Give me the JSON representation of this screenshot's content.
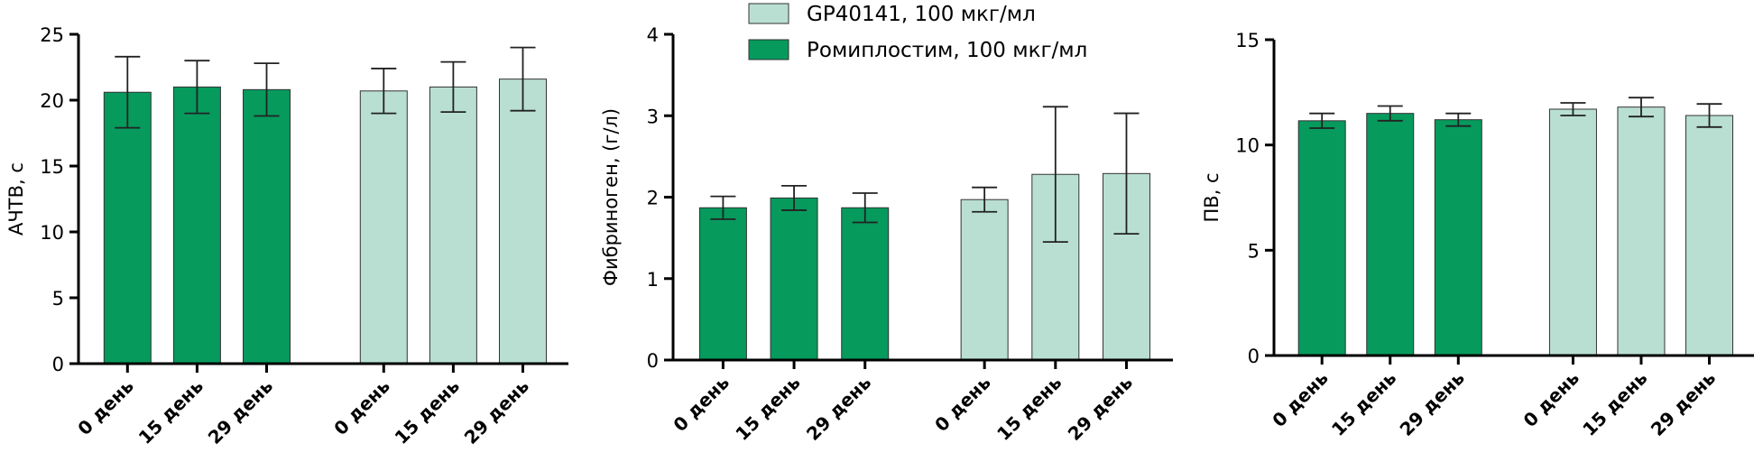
{
  "chart_data": [
    {
      "type": "bar",
      "y_label": "АЧТВ, с",
      "categories": [
        "0 день",
        "15 день",
        "29 день",
        "0 день",
        "15 день",
        "29 день"
      ],
      "series": [
        {
          "color": "#b9dfd3",
          "values": [
            null,
            null,
            null,
            20.7,
            21.0,
            21.6
          ],
          "errors": [
            null,
            null,
            null,
            1.7,
            1.9,
            2.4
          ]
        },
        {
          "color": "#069a5d",
          "values": [
            20.6,
            21.0,
            20.8,
            null,
            null,
            null
          ],
          "errors": [
            2.7,
            2.0,
            2.0,
            null,
            null,
            null
          ]
        }
      ],
      "ylim": [
        0,
        25
      ],
      "yticks": [
        0,
        5,
        10,
        15,
        20,
        25
      ]
    },
    {
      "type": "bar",
      "y_label": "Фибриноген, (г/л)",
      "categories": [
        "0 день",
        "15 день",
        "29 день",
        "0 день",
        "15 день",
        "29 день"
      ],
      "series": [
        {
          "name": "GP40141, 100  мкг/мл",
          "color": "#b9dfd3",
          "values": [
            null,
            null,
            null,
            1.97,
            2.28,
            2.29
          ],
          "errors": [
            null,
            null,
            null,
            0.15,
            0.83,
            0.74
          ]
        },
        {
          "name": "Ромиплостим, 100 мкг/мл",
          "color": "#069a5d",
          "values": [
            1.87,
            1.99,
            1.87,
            null,
            null,
            null
          ],
          "errors": [
            0.14,
            0.15,
            0.18,
            null,
            null,
            null
          ]
        }
      ],
      "ylim": [
        0,
        4
      ],
      "yticks": [
        0,
        1,
        2,
        3,
        4
      ]
    },
    {
      "type": "bar",
      "y_label": "ПВ, с",
      "categories": [
        "0 день",
        "15 день",
        "29 день",
        "0 день",
        "15 день",
        "29 день"
      ],
      "series": [
        {
          "color": "#b9dfd3",
          "values": [
            null,
            null,
            null,
            11.7,
            11.8,
            11.4
          ],
          "errors": [
            null,
            null,
            null,
            0.3,
            0.45,
            0.55
          ]
        },
        {
          "color": "#069a5d",
          "values": [
            11.15,
            11.5,
            11.2,
            null,
            null,
            null
          ],
          "errors": [
            0.35,
            0.35,
            0.3,
            null,
            null,
            null
          ]
        }
      ],
      "ylim": [
        0,
        15
      ],
      "yticks": [
        0,
        5,
        10,
        15
      ]
    }
  ]
}
